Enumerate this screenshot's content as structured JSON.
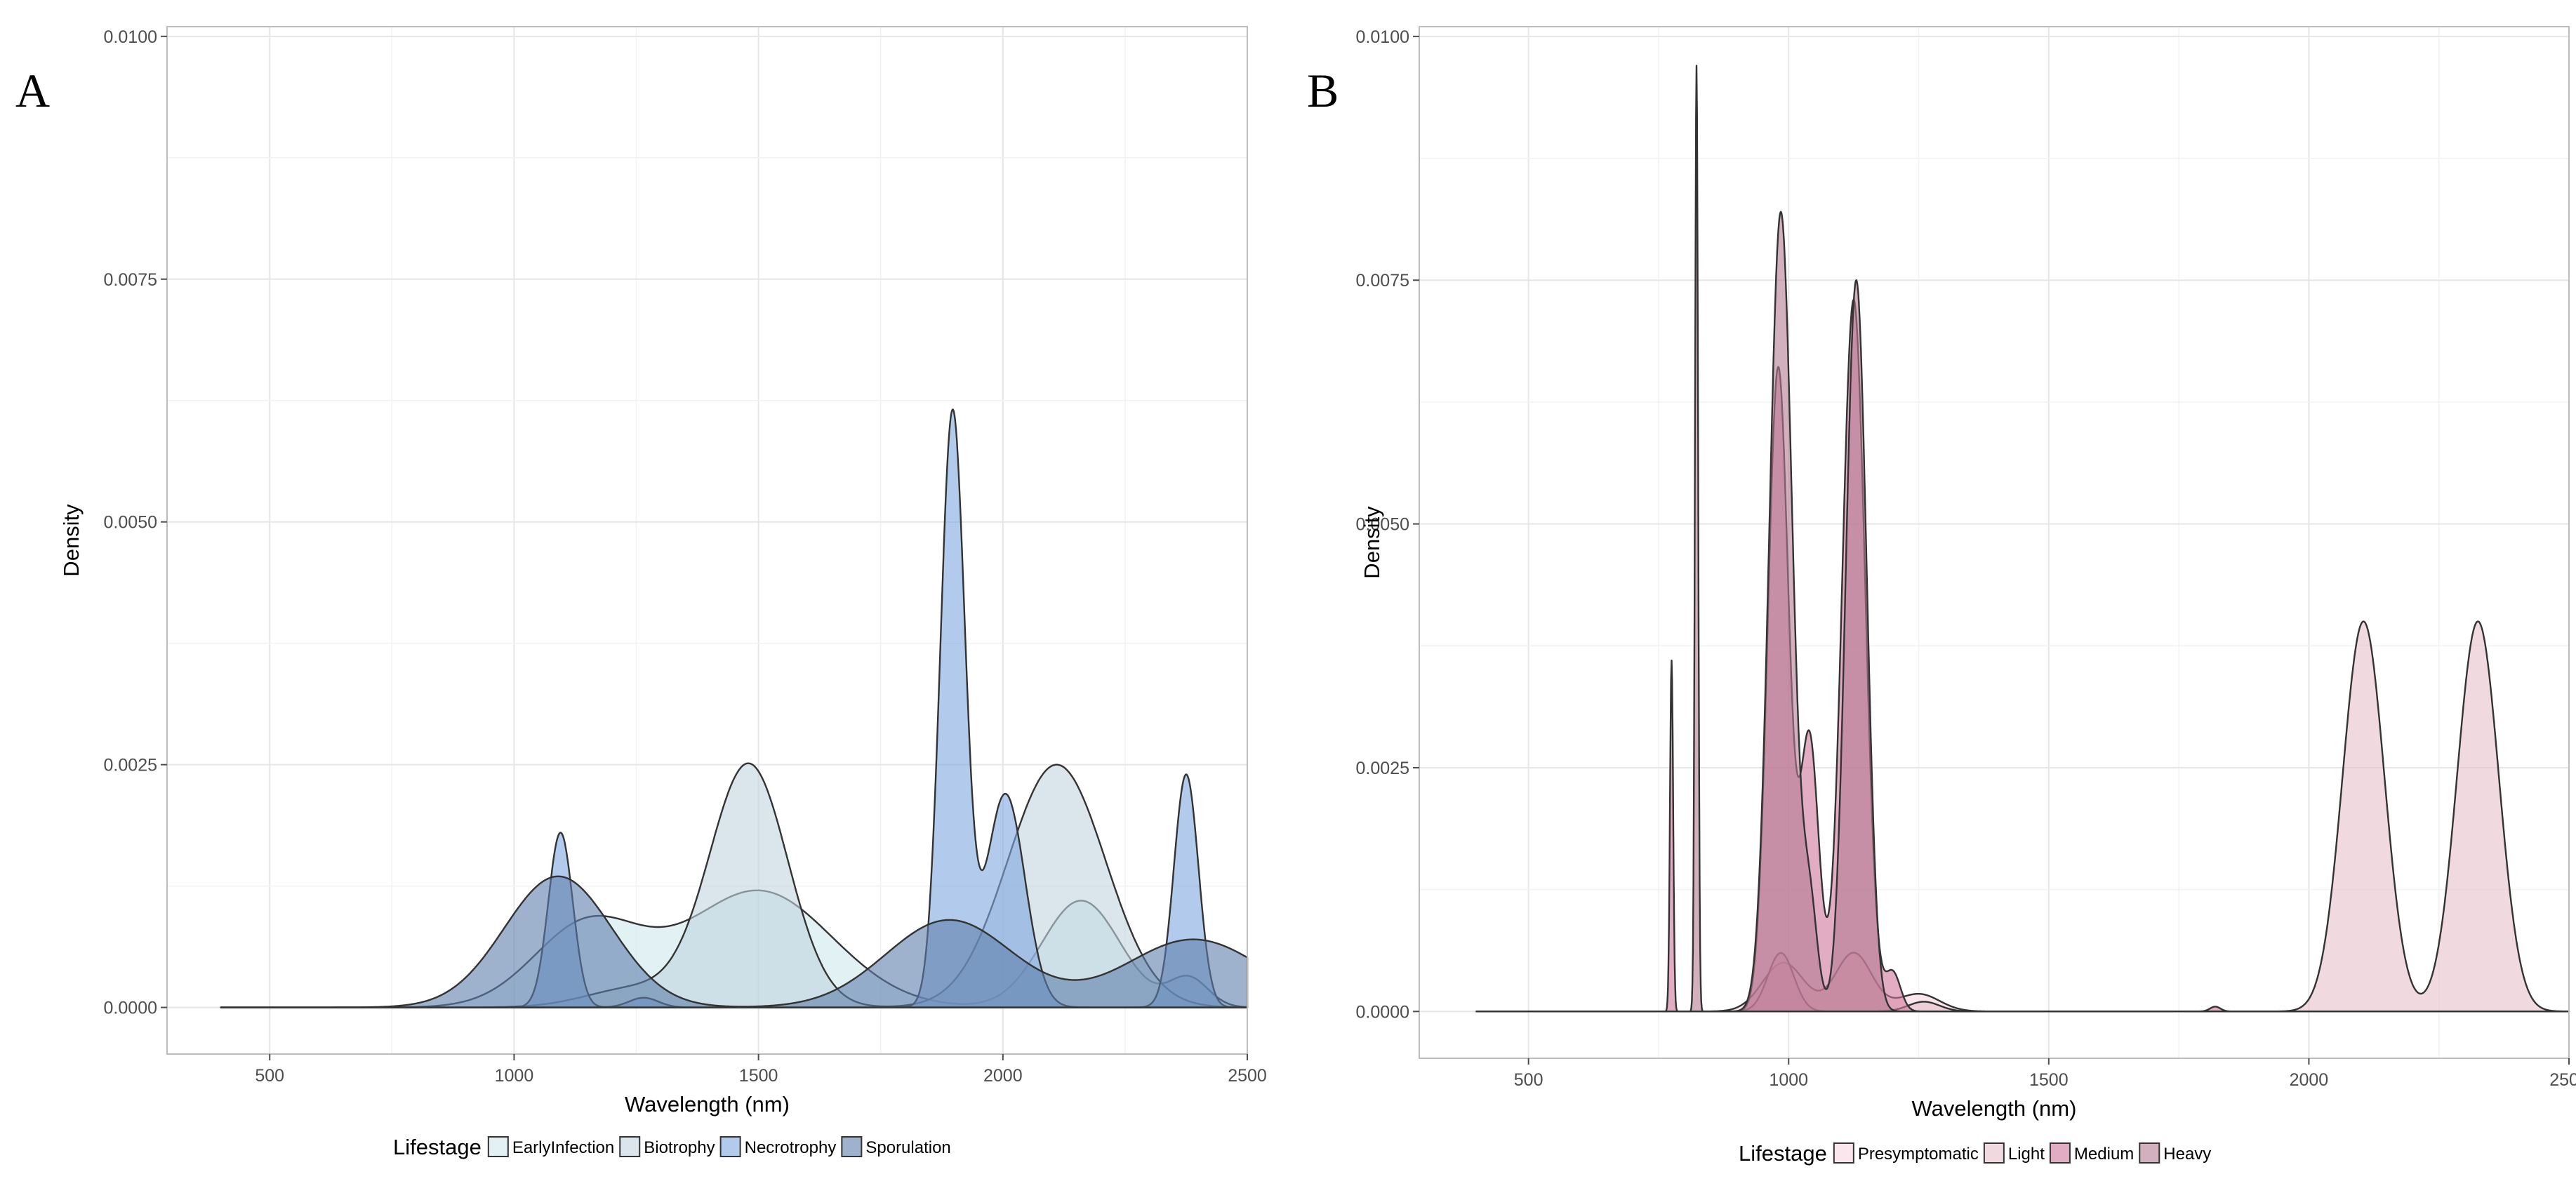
{
  "chart_data": [
    {
      "panel": "A",
      "type": "area",
      "title": "",
      "xlabel": "Wavelength (nm)",
      "ylabel": "Density",
      "xlim": [
        290,
        2500
      ],
      "ylim": [
        -0.00048,
        0.0101
      ],
      "xticks": [
        500,
        1000,
        1500,
        2000,
        2500
      ],
      "xtick_labels": [
        "500",
        "1000",
        "1500",
        "2000",
        "2500"
      ],
      "yticks": [
        0,
        0.0025,
        0.005,
        0.0075,
        0.01
      ],
      "ytick_labels": [
        "0.0000",
        "0.0025",
        "0.0050",
        "0.0075",
        "0.0100"
      ],
      "grid": true,
      "legend_title": "Lifestage",
      "legend_position": "bottom",
      "curve_range": [
        400,
        2500
      ],
      "series": [
        {
          "name": "EarlyInfection",
          "color": "#cfe8ec",
          "components": [
            [
              1150,
              110,
              0.00085
            ],
            [
              1500,
              150,
              0.0012
            ],
            [
              2160,
              80,
              0.0011
            ],
            [
              2380,
              40,
              0.0003
            ]
          ]
        },
        {
          "name": "Biotrophy",
          "color": "#c2d5de",
          "components": [
            [
              1480,
              80,
              0.0025
            ],
            [
              2110,
              100,
              0.0025
            ],
            [
              1250,
              100,
              0.0002
            ]
          ]
        },
        {
          "name": "Necrotrophy",
          "color": "#7ea6df",
          "components": [
            [
              1095,
              25,
              0.0018
            ],
            [
              1265,
              30,
              0.0001
            ],
            [
              1897,
              25,
              0.0061
            ],
            [
              2005,
              40,
              0.0022
            ],
            [
              2375,
              25,
              0.0024
            ]
          ]
        },
        {
          "name": "Sporulation",
          "color": "#5e7eab",
          "components": [
            [
              1090,
              110,
              0.00135
            ],
            [
              1890,
              130,
              0.0009
            ],
            [
              2390,
              140,
              0.0007
            ]
          ]
        }
      ]
    },
    {
      "panel": "B",
      "type": "area",
      "title": "",
      "xlabel": "Wavelength (nm)",
      "ylabel": "Density",
      "xlim": [
        290,
        2500
      ],
      "ylim": [
        -0.00048,
        0.0101
      ],
      "xticks": [
        500,
        1000,
        1500,
        2000,
        2500
      ],
      "xtick_labels": [
        "500",
        "1000",
        "1500",
        "2000",
        "2500"
      ],
      "yticks": [
        0,
        0.0025,
        0.005,
        0.0075,
        0.01
      ],
      "ytick_labels": [
        "0.0000",
        "0.0025",
        "0.0050",
        "0.0075",
        "0.0100"
      ],
      "grid": true,
      "legend_title": "Lifestage",
      "legend_position": "bottom",
      "curve_range": [
        400,
        2500
      ],
      "series": [
        {
          "name": "Presymptomatic",
          "color": "#f7d5e0",
          "components": [
            [
              990,
              40,
              0.0005
            ],
            [
              1125,
              35,
              0.0006
            ],
            [
              1250,
              40,
              0.00018
            ]
          ]
        },
        {
          "name": "Light",
          "color": "#e6bfc9",
          "components": [
            [
              2105,
              40,
              0.004
            ],
            [
              2325,
              40,
              0.004
            ],
            [
              1260,
              30,
              0.0001
            ],
            [
              985,
              25,
              0.0006
            ]
          ]
        },
        {
          "name": "Medium",
          "color": "#cf7799",
          "components": [
            [
              775,
              3,
              0.0036
            ],
            [
              980,
              20,
              0.0066
            ],
            [
              1040,
              18,
              0.0028
            ],
            [
              1125,
              22,
              0.0073
            ],
            [
              1200,
              15,
              0.0004
            ],
            [
              1820,
              10,
              5e-05
            ]
          ]
        },
        {
          "name": "Heavy",
          "color": "#b57c93",
          "components": [
            [
              823,
              3,
              0.0097
            ],
            [
              985,
              22,
              0.0082
            ],
            [
              1130,
              20,
              0.0075
            ],
            [
              1040,
              15,
              0.0011
            ]
          ]
        }
      ]
    }
  ]
}
